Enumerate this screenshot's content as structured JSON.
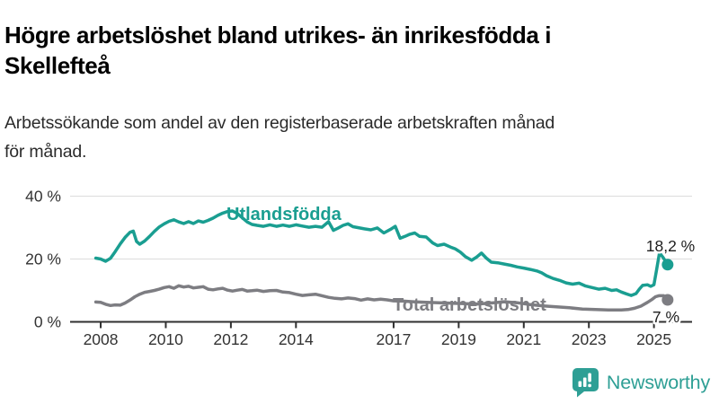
{
  "header": {
    "title_lines": [
      "Högre arbetslöshet bland utrikes- än inrikesfödda i",
      "Skellefteå"
    ],
    "subtitle_lines": [
      "Arbetssökande som andel av den registerbaserade arbetskraften månad",
      "för månad."
    ]
  },
  "colors": {
    "accent_teal": "#1A9E91",
    "series_gray": "#7D7D82",
    "grid": "#DCDCDC",
    "axis": "#303030",
    "label_dark": "#1D1D1D"
  },
  "chart_data": {
    "type": "line",
    "title": "Arbetssökande som andel av den registerbaserade arbetskraften månad för månad",
    "grid": "horizontal",
    "legend": "inline-labels",
    "x_axis": {
      "range": [
        2007.06,
        2026.17
      ],
      "ticks": [
        2008,
        2010,
        2012,
        2014,
        2017,
        2019,
        2021,
        2023,
        2025
      ],
      "tick_labels": [
        "2008",
        "2010",
        "2012",
        "2014",
        "2017",
        "2019",
        "2021",
        "2023",
        "2025"
      ]
    },
    "y_axis": {
      "range": [
        0,
        40
      ],
      "ticks": [
        0,
        20,
        40
      ],
      "tick_labels": [
        "0 %",
        "20 %",
        "40 %"
      ]
    },
    "series": [
      {
        "name": "Utlandsfödda",
        "slug": "utlandsfodda",
        "color": "#1A9E91",
        "end_label": "18,2 %",
        "end_value": 18.2,
        "points": [
          [
            2007.85,
            20.3
          ],
          [
            2008.0,
            20.0
          ],
          [
            2008.15,
            19.3
          ],
          [
            2008.3,
            20.2
          ],
          [
            2008.45,
            22.4
          ],
          [
            2008.6,
            24.8
          ],
          [
            2008.75,
            26.9
          ],
          [
            2008.9,
            28.5
          ],
          [
            2009.0,
            28.9
          ],
          [
            2009.1,
            25.6
          ],
          [
            2009.2,
            24.7
          ],
          [
            2009.35,
            25.7
          ],
          [
            2009.5,
            27.2
          ],
          [
            2009.65,
            28.8
          ],
          [
            2009.8,
            30.2
          ],
          [
            2009.95,
            31.2
          ],
          [
            2010.1,
            32.0
          ],
          [
            2010.25,
            32.5
          ],
          [
            2010.4,
            31.8
          ],
          [
            2010.55,
            31.3
          ],
          [
            2010.7,
            31.9
          ],
          [
            2010.85,
            31.3
          ],
          [
            2011.0,
            32.1
          ],
          [
            2011.15,
            31.7
          ],
          [
            2011.3,
            32.3
          ],
          [
            2011.45,
            33.0
          ],
          [
            2011.6,
            33.9
          ],
          [
            2011.75,
            34.6
          ],
          [
            2011.9,
            35.1
          ],
          [
            2012.05,
            35.3
          ],
          [
            2012.2,
            34.5
          ],
          [
            2012.35,
            33.1
          ],
          [
            2012.5,
            31.8
          ],
          [
            2012.65,
            31.0
          ],
          [
            2012.8,
            30.7
          ],
          [
            2013.0,
            30.4
          ],
          [
            2013.2,
            30.9
          ],
          [
            2013.4,
            30.4
          ],
          [
            2013.6,
            30.8
          ],
          [
            2013.8,
            30.4
          ],
          [
            2014.0,
            30.9
          ],
          [
            2014.2,
            30.5
          ],
          [
            2014.4,
            30.1
          ],
          [
            2014.6,
            30.4
          ],
          [
            2014.8,
            30.1
          ],
          [
            2015.0,
            31.9
          ],
          [
            2015.15,
            29.1
          ],
          [
            2015.3,
            29.9
          ],
          [
            2015.45,
            30.7
          ],
          [
            2015.6,
            31.2
          ],
          [
            2015.75,
            30.3
          ],
          [
            2015.9,
            30.0
          ],
          [
            2016.1,
            29.6
          ],
          [
            2016.3,
            29.3
          ],
          [
            2016.5,
            29.9
          ],
          [
            2016.7,
            28.3
          ],
          [
            2016.9,
            29.4
          ],
          [
            2017.05,
            30.4
          ],
          [
            2017.2,
            26.6
          ],
          [
            2017.35,
            27.2
          ],
          [
            2017.5,
            27.9
          ],
          [
            2017.65,
            28.3
          ],
          [
            2017.8,
            27.2
          ],
          [
            2018.0,
            27.0
          ],
          [
            2018.2,
            25.1
          ],
          [
            2018.35,
            24.3
          ],
          [
            2018.55,
            24.7
          ],
          [
            2018.75,
            23.8
          ],
          [
            2018.9,
            23.2
          ],
          [
            2019.05,
            22.2
          ],
          [
            2019.2,
            20.8
          ],
          [
            2019.4,
            19.6
          ],
          [
            2019.55,
            20.6
          ],
          [
            2019.7,
            21.9
          ],
          [
            2019.85,
            20.3
          ],
          [
            2020.0,
            19.0
          ],
          [
            2020.2,
            18.8
          ],
          [
            2020.4,
            18.4
          ],
          [
            2020.6,
            18.0
          ],
          [
            2020.8,
            17.5
          ],
          [
            2021.0,
            17.1
          ],
          [
            2021.2,
            16.7
          ],
          [
            2021.4,
            16.2
          ],
          [
            2021.55,
            15.6
          ],
          [
            2021.7,
            14.7
          ],
          [
            2021.9,
            13.8
          ],
          [
            2022.1,
            13.2
          ],
          [
            2022.3,
            12.4
          ],
          [
            2022.5,
            12.0
          ],
          [
            2022.7,
            12.3
          ],
          [
            2022.9,
            11.4
          ],
          [
            2023.1,
            10.9
          ],
          [
            2023.3,
            10.4
          ],
          [
            2023.5,
            10.7
          ],
          [
            2023.7,
            10.0
          ],
          [
            2023.85,
            10.2
          ],
          [
            2024.0,
            9.5
          ],
          [
            2024.15,
            8.9
          ],
          [
            2024.3,
            8.4
          ],
          [
            2024.45,
            9.0
          ],
          [
            2024.55,
            10.4
          ],
          [
            2024.65,
            11.6
          ],
          [
            2024.8,
            11.8
          ],
          [
            2024.9,
            11.3
          ],
          [
            2025.0,
            11.8
          ],
          [
            2025.08,
            16.5
          ],
          [
            2025.17,
            22.0
          ],
          [
            2025.28,
            20.5
          ],
          [
            2025.42,
            18.2
          ]
        ]
      },
      {
        "name": "Total arbetslöshet",
        "slug": "total-arbetsloshet",
        "color": "#7D7D82",
        "end_label": "7 %",
        "end_value": 7.0,
        "points": [
          [
            2007.85,
            6.3
          ],
          [
            2008.0,
            6.2
          ],
          [
            2008.15,
            5.6
          ],
          [
            2008.3,
            5.2
          ],
          [
            2008.45,
            5.4
          ],
          [
            2008.6,
            5.3
          ],
          [
            2008.75,
            6.0
          ],
          [
            2008.9,
            6.9
          ],
          [
            2009.05,
            8.0
          ],
          [
            2009.2,
            8.8
          ],
          [
            2009.35,
            9.4
          ],
          [
            2009.5,
            9.7
          ],
          [
            2009.65,
            10.0
          ],
          [
            2009.8,
            10.4
          ],
          [
            2009.95,
            10.9
          ],
          [
            2010.1,
            11.2
          ],
          [
            2010.25,
            10.7
          ],
          [
            2010.4,
            11.5
          ],
          [
            2010.55,
            11.1
          ],
          [
            2010.7,
            11.3
          ],
          [
            2010.85,
            10.8
          ],
          [
            2011.0,
            11.0
          ],
          [
            2011.15,
            11.2
          ],
          [
            2011.3,
            10.4
          ],
          [
            2011.45,
            10.2
          ],
          [
            2011.6,
            10.5
          ],
          [
            2011.75,
            10.7
          ],
          [
            2011.9,
            10.1
          ],
          [
            2012.05,
            9.8
          ],
          [
            2012.2,
            10.1
          ],
          [
            2012.35,
            10.3
          ],
          [
            2012.5,
            9.8
          ],
          [
            2012.65,
            9.9
          ],
          [
            2012.8,
            10.1
          ],
          [
            2013.0,
            9.7
          ],
          [
            2013.2,
            9.9
          ],
          [
            2013.4,
            10.0
          ],
          [
            2013.6,
            9.5
          ],
          [
            2013.8,
            9.3
          ],
          [
            2014.0,
            8.8
          ],
          [
            2014.2,
            8.4
          ],
          [
            2014.4,
            8.6
          ],
          [
            2014.6,
            8.8
          ],
          [
            2014.8,
            8.3
          ],
          [
            2015.0,
            7.8
          ],
          [
            2015.2,
            7.5
          ],
          [
            2015.4,
            7.3
          ],
          [
            2015.6,
            7.6
          ],
          [
            2015.8,
            7.4
          ],
          [
            2016.0,
            6.9
          ],
          [
            2016.2,
            7.3
          ],
          [
            2016.4,
            7.0
          ],
          [
            2016.6,
            7.2
          ],
          [
            2016.8,
            7.0
          ],
          [
            2017.0,
            6.7
          ],
          [
            2017.3,
            6.6
          ],
          [
            2017.6,
            6.4
          ],
          [
            2018.0,
            6.2
          ],
          [
            2018.4,
            6.1
          ],
          [
            2018.8,
            5.9
          ],
          [
            2019.2,
            5.8
          ],
          [
            2019.6,
            5.7
          ],
          [
            2020.0,
            6.0
          ],
          [
            2020.4,
            6.4
          ],
          [
            2020.8,
            6.1
          ],
          [
            2021.2,
            5.5
          ],
          [
            2021.6,
            5.1
          ],
          [
            2022.0,
            4.8
          ],
          [
            2022.4,
            4.5
          ],
          [
            2022.8,
            4.1
          ],
          [
            2023.2,
            3.9
          ],
          [
            2023.6,
            3.8
          ],
          [
            2024.0,
            3.8
          ],
          [
            2024.2,
            3.9
          ],
          [
            2024.4,
            4.3
          ],
          [
            2024.6,
            5.0
          ],
          [
            2024.8,
            6.2
          ],
          [
            2024.95,
            7.2
          ],
          [
            2025.05,
            8.0
          ],
          [
            2025.15,
            8.3
          ],
          [
            2025.3,
            8.3
          ],
          [
            2025.42,
            7.0
          ]
        ]
      }
    ]
  },
  "footer": {
    "brand": "Newsworthy"
  }
}
